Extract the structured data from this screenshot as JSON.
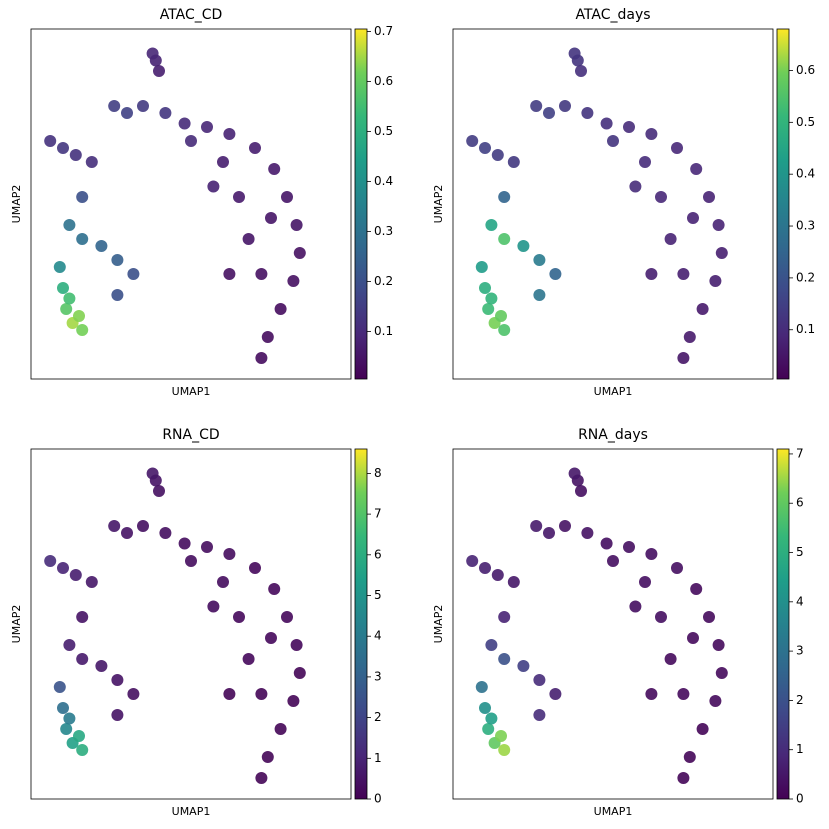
{
  "chart_data": [
    {
      "type": "scatter",
      "title": "ATAC_CD",
      "xlabel": "UMAP1",
      "ylabel": "UMAP2",
      "colormap": "viridis",
      "xlim": [
        0,
        100
      ],
      "ylim": [
        0,
        100
      ],
      "clim": [
        0.005,
        0.705
      ],
      "cticks": [
        0.1,
        0.2,
        0.3,
        0.4,
        0.5,
        0.6,
        0.7
      ],
      "x": [
        39,
        40,
        38,
        26,
        30,
        35,
        42,
        48,
        55,
        62,
        70,
        76,
        80,
        83,
        84,
        82,
        78,
        74,
        72,
        68,
        65,
        57,
        62,
        72,
        75,
        60,
        6,
        10,
        14,
        19,
        16,
        12,
        16,
        22,
        27,
        32,
        9,
        10,
        11,
        13,
        16,
        15,
        12,
        27,
        50
      ],
      "y": [
        91,
        88,
        93,
        78,
        76,
        78,
        76,
        73,
        72,
        70,
        66,
        60,
        52,
        44,
        36,
        28,
        20,
        12,
        6,
        40,
        52,
        55,
        30,
        30,
        46,
        62,
        68,
        66,
        64,
        62,
        52,
        44,
        40,
        38,
        34,
        30,
        32,
        26,
        20,
        16,
        14,
        18,
        23,
        24,
        68
      ],
      "values": [
        0.08,
        0.07,
        0.09,
        0.15,
        0.16,
        0.14,
        0.13,
        0.1,
        0.09,
        0.08,
        0.07,
        0.06,
        0.05,
        0.05,
        0.04,
        0.04,
        0.03,
        0.03,
        0.03,
        0.05,
        0.06,
        0.08,
        0.04,
        0.04,
        0.05,
        0.07,
        0.12,
        0.13,
        0.12,
        0.11,
        0.2,
        0.3,
        0.29,
        0.26,
        0.24,
        0.2,
        0.38,
        0.5,
        0.58,
        0.65,
        0.62,
        0.63,
        0.55,
        0.2,
        0.1
      ]
    },
    {
      "type": "scatter",
      "title": "ATAC_days",
      "xlabel": "UMAP1",
      "ylabel": "UMAP2",
      "colormap": "viridis",
      "xlim": [
        0,
        100
      ],
      "ylim": [
        0,
        100
      ],
      "clim": [
        0.005,
        0.68
      ],
      "cticks": [
        0.1,
        0.2,
        0.3,
        0.4,
        0.5,
        0.6
      ],
      "x": [
        39,
        40,
        38,
        26,
        30,
        35,
        42,
        48,
        55,
        62,
        70,
        76,
        80,
        83,
        84,
        82,
        78,
        74,
        72,
        68,
        65,
        57,
        62,
        72,
        75,
        60,
        6,
        10,
        14,
        19,
        16,
        12,
        16,
        22,
        27,
        32,
        9,
        10,
        11,
        13,
        16,
        15,
        12,
        27,
        50
      ],
      "y": [
        91,
        88,
        93,
        78,
        76,
        78,
        76,
        73,
        72,
        70,
        66,
        60,
        52,
        44,
        36,
        28,
        20,
        12,
        6,
        40,
        52,
        55,
        30,
        30,
        46,
        62,
        68,
        66,
        64,
        62,
        52,
        44,
        40,
        38,
        34,
        30,
        32,
        26,
        20,
        16,
        14,
        18,
        23,
        24,
        68
      ],
      "values": [
        0.12,
        0.11,
        0.12,
        0.14,
        0.15,
        0.13,
        0.12,
        0.11,
        0.1,
        0.1,
        0.09,
        0.09,
        0.08,
        0.08,
        0.07,
        0.07,
        0.06,
        0.06,
        0.05,
        0.08,
        0.09,
        0.1,
        0.07,
        0.07,
        0.08,
        0.1,
        0.14,
        0.15,
        0.14,
        0.13,
        0.25,
        0.45,
        0.55,
        0.4,
        0.32,
        0.25,
        0.42,
        0.48,
        0.52,
        0.6,
        0.55,
        0.58,
        0.5,
        0.3,
        0.12
      ]
    },
    {
      "type": "scatter",
      "title": "RNA_CD",
      "xlabel": "UMAP1",
      "ylabel": "UMAP2",
      "colormap": "viridis",
      "xlim": [
        0,
        100
      ],
      "ylim": [
        0,
        100
      ],
      "clim": [
        0,
        8.6
      ],
      "cticks": [
        0,
        1,
        2,
        3,
        4,
        5,
        6,
        7,
        8
      ],
      "x": [
        39,
        40,
        38,
        26,
        30,
        35,
        42,
        48,
        55,
        62,
        70,
        76,
        80,
        83,
        84,
        82,
        78,
        74,
        72,
        68,
        65,
        57,
        62,
        72,
        75,
        60,
        6,
        10,
        14,
        19,
        16,
        12,
        16,
        22,
        27,
        32,
        9,
        10,
        11,
        13,
        16,
        15,
        12,
        27,
        50
      ],
      "y": [
        91,
        88,
        93,
        78,
        76,
        78,
        76,
        73,
        72,
        70,
        66,
        60,
        52,
        44,
        36,
        28,
        20,
        12,
        6,
        40,
        52,
        55,
        30,
        30,
        46,
        62,
        68,
        66,
        64,
        62,
        52,
        44,
        40,
        38,
        34,
        30,
        32,
        26,
        20,
        16,
        14,
        18,
        23,
        24,
        68
      ],
      "values": [
        0.5,
        0.4,
        0.6,
        0.6,
        0.5,
        0.4,
        0.4,
        0.3,
        0.3,
        0.3,
        0.2,
        0.2,
        0.2,
        0.2,
        0.1,
        0.1,
        0.1,
        0.1,
        0.1,
        0.2,
        0.2,
        0.3,
        0.1,
        0.1,
        0.2,
        0.3,
        1.2,
        1.0,
        0.8,
        0.6,
        0.5,
        0.8,
        0.7,
        0.6,
        0.5,
        0.4,
        2.5,
        3.5,
        4.5,
        5.5,
        6.0,
        5.8,
        4.0,
        0.5,
        0.3
      ]
    },
    {
      "type": "scatter",
      "title": "RNA_days",
      "xlabel": "UMAP1",
      "ylabel": "UMAP2",
      "colormap": "viridis",
      "xlim": [
        0,
        100
      ],
      "ylim": [
        0,
        100
      ],
      "clim": [
        0,
        7.1
      ],
      "cticks": [
        0,
        1,
        2,
        3,
        4,
        5,
        6,
        7
      ],
      "x": [
        39,
        40,
        38,
        26,
        30,
        35,
        42,
        48,
        55,
        62,
        70,
        76,
        80,
        83,
        84,
        82,
        78,
        74,
        72,
        68,
        65,
        57,
        62,
        72,
        75,
        60,
        6,
        10,
        14,
        19,
        16,
        12,
        16,
        22,
        27,
        32,
        9,
        10,
        11,
        13,
        16,
        15,
        12,
        27,
        50
      ],
      "y": [
        91,
        88,
        93,
        78,
        76,
        78,
        76,
        73,
        72,
        70,
        66,
        60,
        52,
        44,
        36,
        28,
        20,
        12,
        6,
        40,
        52,
        55,
        30,
        30,
        46,
        62,
        68,
        66,
        64,
        62,
        52,
        44,
        40,
        38,
        34,
        30,
        32,
        26,
        20,
        16,
        14,
        18,
        23,
        24,
        68
      ],
      "values": [
        0.4,
        0.3,
        0.5,
        0.6,
        0.5,
        0.4,
        0.4,
        0.3,
        0.3,
        0.3,
        0.3,
        0.2,
        0.2,
        0.2,
        0.2,
        0.2,
        0.1,
        0.1,
        0.1,
        0.2,
        0.3,
        0.3,
        0.2,
        0.2,
        0.2,
        0.3,
        0.8,
        0.7,
        0.6,
        0.5,
        0.8,
        1.5,
        2.0,
        1.5,
        1.0,
        0.7,
        3.0,
        4.0,
        5.0,
        6.0,
        6.5,
        6.3,
        4.5,
        1.0,
        0.3
      ]
    }
  ]
}
